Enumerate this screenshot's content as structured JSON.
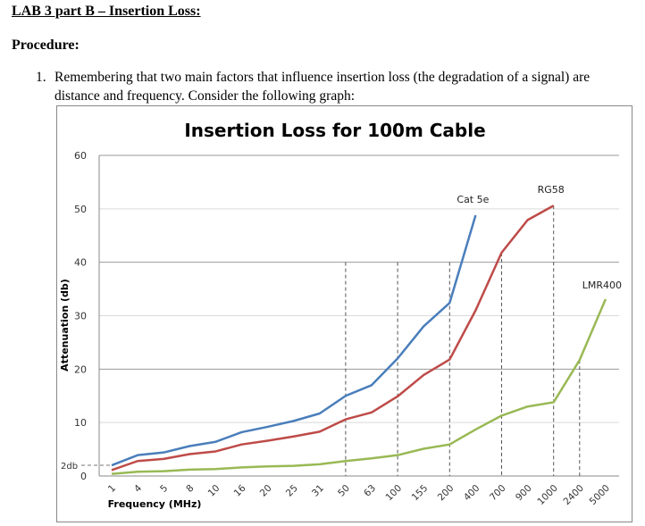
{
  "document": {
    "title": "LAB 3 part B – Insertion Loss:",
    "section": "Procedure:",
    "items": [
      {
        "number": "1.",
        "text": "Remembering that two main factors that influence insertion loss (the degradation of a signal) are distance and frequency. Consider the following graph:"
      }
    ]
  },
  "chart_data": {
    "type": "line",
    "title": "Insertion Loss for 100m Cable",
    "xlabel": "Frequency (MHz)",
    "ylabel": "Attenuation (db)",
    "categories": [
      "1",
      "4",
      "5",
      "8",
      "10",
      "16",
      "20",
      "25",
      "31",
      "50",
      "63",
      "100",
      "155",
      "200",
      "400",
      "700",
      "900",
      "1000",
      "2400",
      "5000"
    ],
    "ylim": [
      0,
      60
    ],
    "yticks": [
      "0",
      "10",
      "20",
      "30",
      "40",
      "50",
      "60"
    ],
    "grid": true,
    "legend": "inline labels at line ends",
    "reference_label": "2db",
    "reference_value": 2,
    "reference_vertical_categories": [
      "50",
      "100",
      "200",
      "700",
      "1000",
      "2400"
    ],
    "series": [
      {
        "name": "Cat 5e",
        "color": "#4a7ebb",
        "values": [
          2.0,
          3.9,
          4.4,
          5.6,
          6.4,
          8.2,
          9.2,
          10.3,
          11.7,
          15.0,
          17.0,
          22.0,
          28.0,
          32.4,
          48.8,
          null,
          null,
          null,
          null,
          null
        ]
      },
      {
        "name": "RG58",
        "color": "#be4b48",
        "values": [
          1.1,
          2.8,
          3.2,
          4.1,
          4.6,
          5.9,
          6.6,
          7.4,
          8.3,
          10.6,
          11.9,
          14.9,
          18.9,
          21.8,
          31.0,
          41.8,
          47.9,
          50.6,
          null,
          null
        ]
      },
      {
        "name": "LMR400",
        "color": "#98b954",
        "values": [
          0.4,
          0.8,
          0.9,
          1.2,
          1.3,
          1.6,
          1.8,
          1.9,
          2.2,
          2.8,
          3.3,
          3.9,
          5.1,
          5.9,
          8.7,
          11.3,
          13.0,
          13.8,
          21.7,
          33.1
        ]
      }
    ]
  }
}
